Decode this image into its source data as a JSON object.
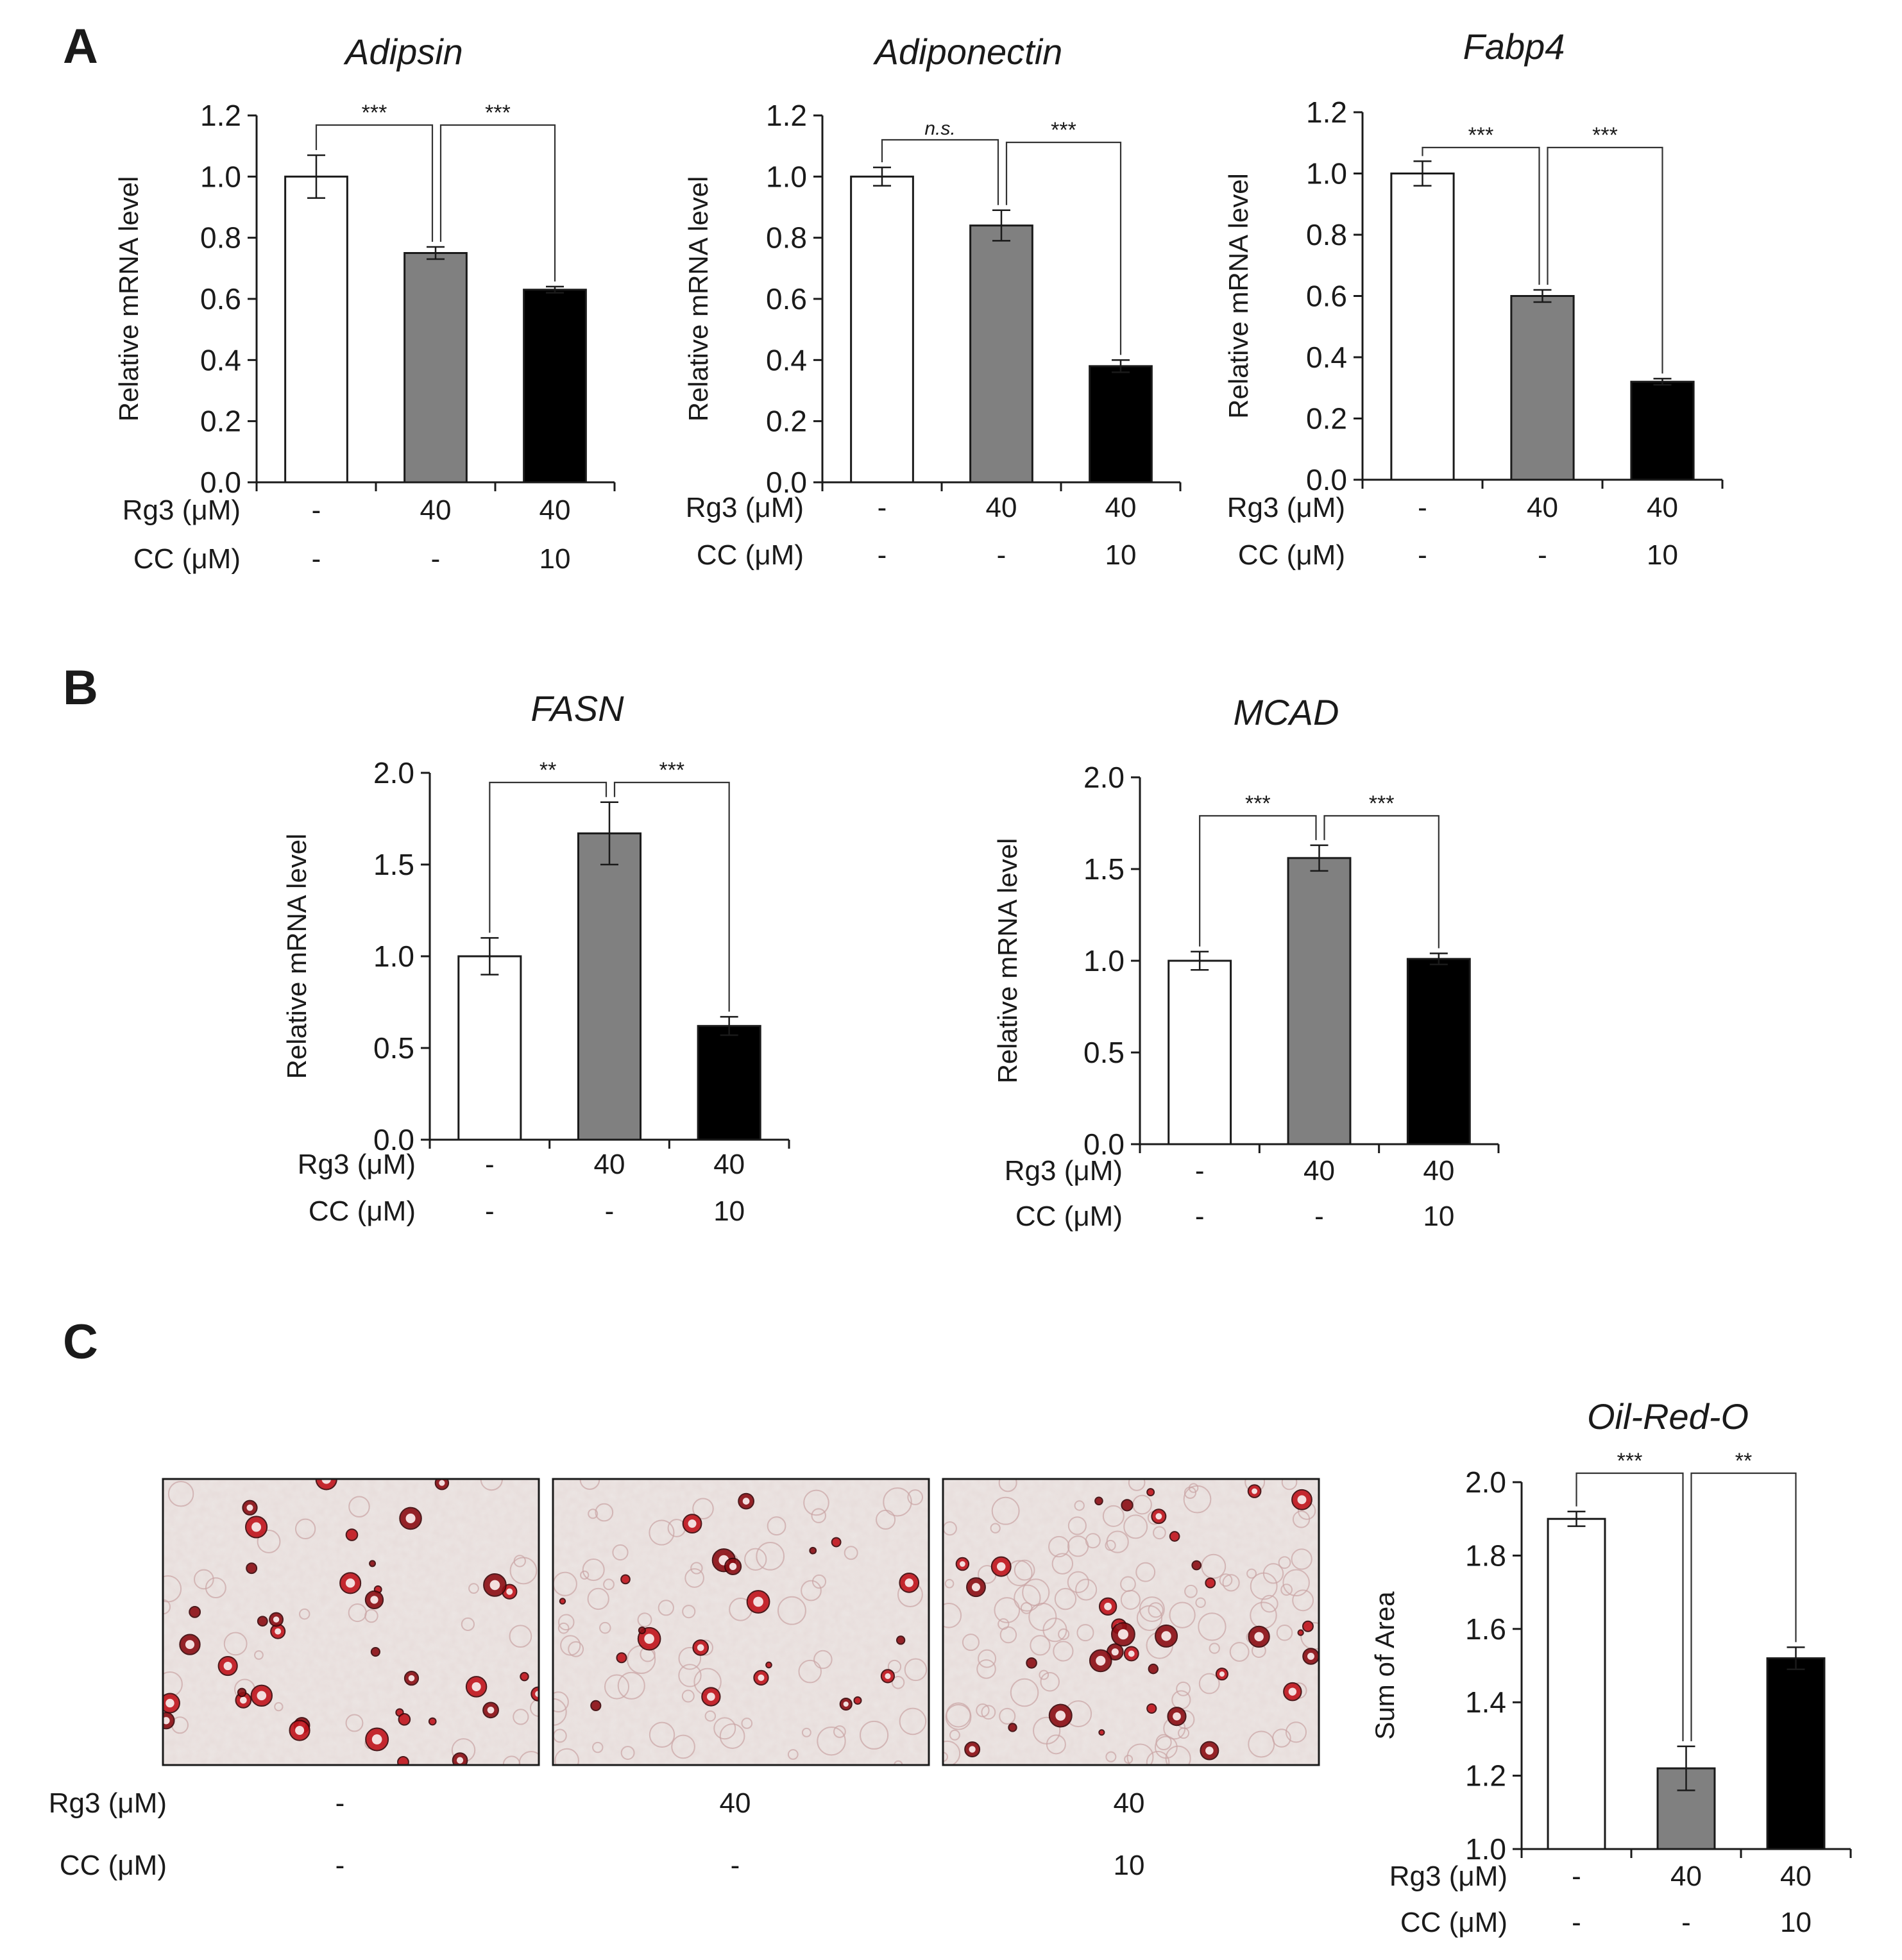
{
  "panel_labels": [
    "A",
    "B",
    "C"
  ],
  "colors": {
    "control": "#ffffff",
    "rg3": "#808080",
    "rg3_cc": "#000000",
    "stain_dark": "#8b0e14",
    "stain_bright": "#c0141c",
    "background": "#ece6e4"
  },
  "condition_rows": {
    "rg3_label": "Rg3 (μM)",
    "cc_label": "CC (μM)",
    "rg3_values": [
      "-",
      "40",
      "40"
    ],
    "cc_values": [
      "-",
      "-",
      "10"
    ]
  },
  "micrographs": [
    {
      "name": "control",
      "rg3": "-",
      "cc": "-"
    },
    {
      "name": "rg3",
      "rg3": "40",
      "cc": "-"
    },
    {
      "name": "rg3-cc",
      "rg3": "40",
      "cc": "10"
    }
  ],
  "chart_data": [
    {
      "panel": "A",
      "type": "bar",
      "title": "Adipsin",
      "title_italic": true,
      "ylabel": "Relative mRNA level",
      "xlabel": "",
      "ylim": [
        0,
        1.2
      ],
      "yticks": [
        "0.0",
        "0.2",
        "0.4",
        "0.6",
        "0.8",
        "1.0",
        "1.2"
      ],
      "categories": [
        "-/-",
        "40/-",
        "40/10"
      ],
      "values": [
        1.0,
        0.75,
        0.63
      ],
      "errors": [
        0.07,
        0.02,
        0.01
      ],
      "bar_colors": [
        "#ffffff",
        "#808080",
        "#000000"
      ],
      "significance": [
        {
          "from": 0,
          "to": 1,
          "label": "***"
        },
        {
          "from": 1,
          "to": 2,
          "label": "***"
        }
      ]
    },
    {
      "panel": "A",
      "type": "bar",
      "title": "Adiponectin",
      "title_italic": true,
      "ylabel": "Relative mRNA level",
      "xlabel": "",
      "ylim": [
        0,
        1.2
      ],
      "yticks": [
        "0.0",
        "0.2",
        "0.4",
        "0.6",
        "0.8",
        "1.0",
        "1.2"
      ],
      "categories": [
        "-/-",
        "40/-",
        "40/10"
      ],
      "values": [
        1.0,
        0.84,
        0.38
      ],
      "errors": [
        0.03,
        0.05,
        0.02
      ],
      "bar_colors": [
        "#ffffff",
        "#808080",
        "#000000"
      ],
      "significance": [
        {
          "from": 0,
          "to": 1,
          "label": "n.s."
        },
        {
          "from": 1,
          "to": 2,
          "label": "***"
        }
      ]
    },
    {
      "panel": "A",
      "type": "bar",
      "title": "Fabp4",
      "title_italic": true,
      "ylabel": "Relative mRNA level",
      "xlabel": "",
      "ylim": [
        0,
        1.2
      ],
      "yticks": [
        "0.0",
        "0.2",
        "0.4",
        "0.6",
        "0.8",
        "1.0",
        "1.2"
      ],
      "categories": [
        "-/-",
        "40/-",
        "40/10"
      ],
      "values": [
        1.0,
        0.6,
        0.32
      ],
      "errors": [
        0.04,
        0.02,
        0.01
      ],
      "bar_colors": [
        "#ffffff",
        "#808080",
        "#000000"
      ],
      "significance": [
        {
          "from": 0,
          "to": 1,
          "label": "***"
        },
        {
          "from": 1,
          "to": 2,
          "label": "***"
        }
      ]
    },
    {
      "panel": "B",
      "type": "bar",
      "title": "FASN",
      "title_italic": true,
      "ylabel": "Relative mRNA level",
      "xlabel": "",
      "ylim": [
        0,
        2.0
      ],
      "yticks": [
        "0.0",
        "0.5",
        "1.0",
        "1.5",
        "2.0"
      ],
      "categories": [
        "-/-",
        "40/-",
        "40/10"
      ],
      "values": [
        1.0,
        1.67,
        0.62
      ],
      "errors": [
        0.1,
        0.17,
        0.05
      ],
      "bar_colors": [
        "#ffffff",
        "#808080",
        "#000000"
      ],
      "significance": [
        {
          "from": 0,
          "to": 1,
          "label": "**"
        },
        {
          "from": 1,
          "to": 2,
          "label": "***"
        }
      ]
    },
    {
      "panel": "B",
      "type": "bar",
      "title": "MCAD",
      "title_italic": true,
      "ylabel": "Relative mRNA level",
      "xlabel": "",
      "ylim": [
        0,
        2.0
      ],
      "yticks": [
        "0.0",
        "0.5",
        "1.0",
        "1.5",
        "2.0"
      ],
      "categories": [
        "-/-",
        "40/-",
        "40/10"
      ],
      "values": [
        1.0,
        1.56,
        1.01
      ],
      "errors": [
        0.05,
        0.07,
        0.03
      ],
      "bar_colors": [
        "#ffffff",
        "#808080",
        "#000000"
      ],
      "significance": [
        {
          "from": 0,
          "to": 1,
          "label": "***"
        },
        {
          "from": 1,
          "to": 2,
          "label": "***"
        }
      ]
    },
    {
      "panel": "C",
      "type": "bar",
      "title": "Oil-Red-O",
      "title_italic": true,
      "ylabel": "Sum of Area",
      "xlabel": "",
      "ylim": [
        1.0,
        2.0
      ],
      "yticks": [
        "1.0",
        "1.2",
        "1.4",
        "1.6",
        "1.8",
        "2.0"
      ],
      "categories": [
        "-/-",
        "40/-",
        "40/10"
      ],
      "values": [
        1.9,
        1.22,
        1.52
      ],
      "errors": [
        0.02,
        0.06,
        0.03
      ],
      "bar_colors": [
        "#ffffff",
        "#808080",
        "#000000"
      ],
      "significance": [
        {
          "from": 0,
          "to": 1,
          "label": "***"
        },
        {
          "from": 1,
          "to": 2,
          "label": "**"
        }
      ]
    }
  ]
}
